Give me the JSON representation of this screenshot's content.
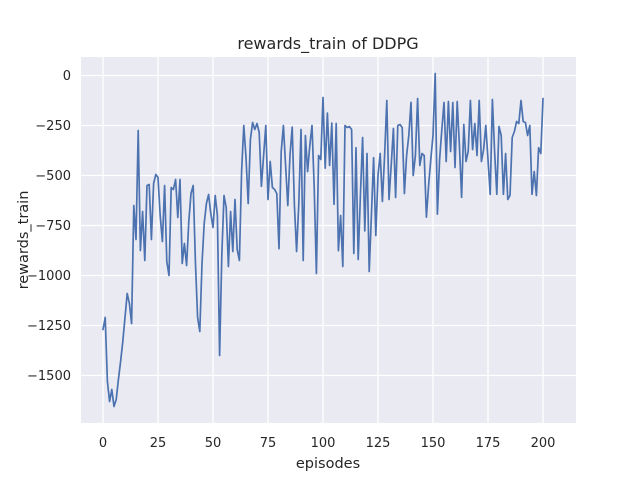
{
  "chart_data": {
    "type": "line",
    "title": "rewards_train of DDPG",
    "xlabel": "episodes",
    "ylabel": "rewards_train",
    "series_name": "rewards_train",
    "line_color": "#4c72b0",
    "plot_background_color": "#eaeaf2",
    "figure_background_color": "#ffffff",
    "grid_color": "#ffffff",
    "text_color": "#262626",
    "grid": true,
    "legend": false,
    "xlim": [
      -10,
      215
    ],
    "ylim": [
      -1737.5,
      92.5
    ],
    "x_ticks": [
      0,
      25,
      50,
      75,
      100,
      125,
      150,
      175,
      200
    ],
    "x_tick_labels": [
      "0",
      "25",
      "50",
      "75",
      "100",
      "125",
      "150",
      "175",
      "200"
    ],
    "y_ticks": [
      0,
      -250,
      -500,
      -750,
      -1000,
      -1250,
      -1500
    ],
    "y_tick_labels": [
      "0",
      "−250",
      "−500",
      "−750",
      "−1000",
      "−1250",
      "−1500"
    ],
    "x_start": 0,
    "x_step": 1,
    "values": [
      -1270,
      -1210,
      -1530,
      -1630,
      -1570,
      -1655,
      -1620,
      -1520,
      -1430,
      -1330,
      -1210,
      -1090,
      -1140,
      -1240,
      -650,
      -820,
      -275,
      -875,
      -680,
      -925,
      -550,
      -545,
      -820,
      -540,
      -495,
      -510,
      -700,
      -830,
      -550,
      -930,
      -1000,
      -560,
      -570,
      -520,
      -710,
      -520,
      -940,
      -840,
      -950,
      -730,
      -590,
      -550,
      -930,
      -1210,
      -1280,
      -940,
      -740,
      -640,
      -595,
      -690,
      -760,
      -600,
      -700,
      -1400,
      -900,
      -600,
      -660,
      -955,
      -680,
      -880,
      -620,
      -870,
      -925,
      -480,
      -250,
      -410,
      -640,
      -320,
      -235,
      -270,
      -240,
      -285,
      -554,
      -400,
      -250,
      -620,
      -430,
      -560,
      -570,
      -590,
      -866,
      -381,
      -250,
      -450,
      -650,
      -398,
      -258,
      -648,
      -880,
      -640,
      -270,
      -925,
      -300,
      -480,
      -350,
      -250,
      -560,
      -990,
      -400,
      -420,
      -110,
      -463,
      -188,
      -450,
      -238,
      -644,
      -240,
      -876,
      -700,
      -955,
      -250,
      -260,
      -255,
      -270,
      -890,
      -361,
      -920,
      -600,
      -310,
      -777,
      -390,
      -980,
      -700,
      -411,
      -800,
      -500,
      -390,
      -630,
      -400,
      -125,
      -620,
      -450,
      -265,
      -610,
      -250,
      -245,
      -260,
      -590,
      -400,
      -300,
      -134,
      -500,
      -400,
      -115,
      -450,
      -390,
      -400,
      -708,
      -550,
      -420,
      -300,
      10,
      -693,
      -420,
      -272,
      -135,
      -430,
      -130,
      -380,
      -135,
      -460,
      -130,
      -350,
      -609,
      -245,
      -430,
      -380,
      -125,
      -370,
      -240,
      -400,
      -125,
      -430,
      -370,
      -250,
      -420,
      -594,
      -120,
      -380,
      -594,
      -255,
      -300,
      -594,
      -390,
      -620,
      -600,
      -310,
      -280,
      -230,
      -240,
      -125,
      -230,
      -235,
      -300,
      -250,
      -594,
      -480,
      -600,
      -361,
      -390,
      -115
    ]
  }
}
